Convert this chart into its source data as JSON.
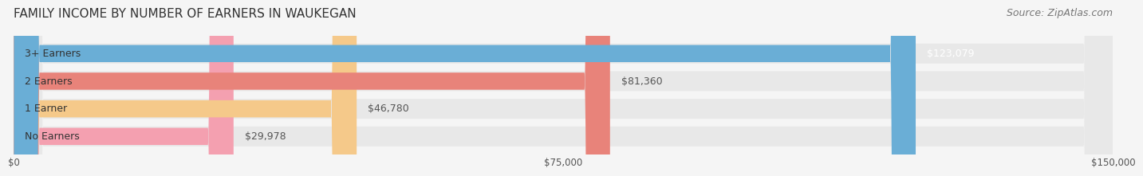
{
  "title": "FAMILY INCOME BY NUMBER OF EARNERS IN WAUKEGAN",
  "source": "Source: ZipAtlas.com",
  "categories": [
    "No Earners",
    "1 Earner",
    "2 Earners",
    "3+ Earners"
  ],
  "values": [
    29978,
    46780,
    81360,
    123079
  ],
  "bar_colors": [
    "#f4a0b0",
    "#f5c98a",
    "#e8837a",
    "#6aaed6"
  ],
  "bar_bg_color": "#e8e8e8",
  "label_colors": [
    "#555555",
    "#555555",
    "#555555",
    "#ffffff"
  ],
  "value_labels": [
    "$29,978",
    "$46,780",
    "$81,360",
    "$123,079"
  ],
  "xlim": [
    0,
    150000
  ],
  "xtick_values": [
    0,
    75000,
    150000
  ],
  "xtick_labels": [
    "$0",
    "$75,000",
    "$150,000"
  ],
  "background_color": "#f5f5f5",
  "bar_bg_rounding": 10,
  "title_fontsize": 11,
  "source_fontsize": 9,
  "label_fontsize": 9,
  "value_fontsize": 9
}
